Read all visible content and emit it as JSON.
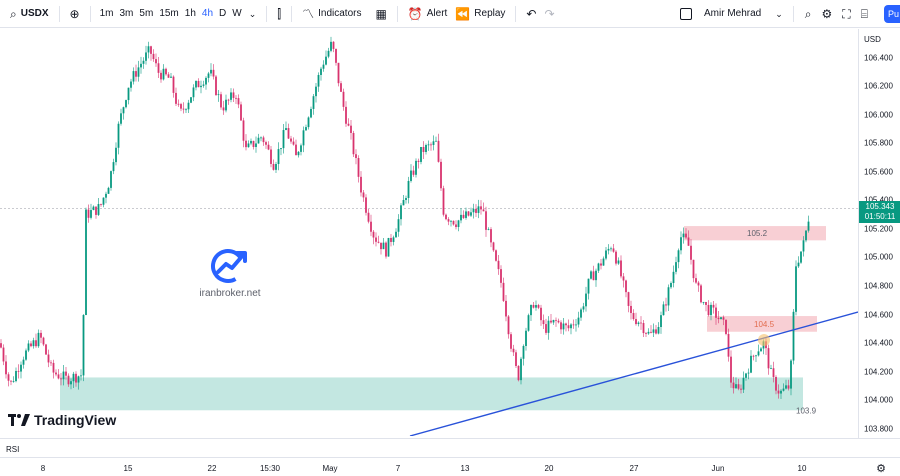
{
  "toolbar": {
    "symbol": "USDX",
    "timeframes": [
      "1m",
      "3m",
      "5m",
      "15m",
      "1h",
      "4h",
      "D",
      "W"
    ],
    "active_timeframe": "4h",
    "indicators_label": "Indicators",
    "alert_label": "Alert",
    "replay_label": "Replay",
    "user_name": "Amir Mehrad",
    "publish_label": "Pu"
  },
  "price_scale": {
    "currency": "USD",
    "ticks": [
      "106.400",
      "106.200",
      "106.000",
      "105.800",
      "105.600",
      "105.400",
      "105.200",
      "105.000",
      "104.800",
      "104.600",
      "104.400",
      "104.200",
      "104.000",
      "103.800"
    ],
    "current_price": "105.343",
    "countdown": "01:50:11"
  },
  "chart": {
    "zone_labels": [
      "105.2",
      "104.5",
      "103.9"
    ],
    "watermark_text": "iranbroker.net",
    "logo_text": "TradingView"
  },
  "chart_data": {
    "type": "candlestick",
    "ylim": [
      103.75,
      106.6
    ],
    "current_price": 105.343,
    "zones": [
      {
        "label": "105.2",
        "low": 105.12,
        "high": 105.22,
        "color": "#f7c7cd"
      },
      {
        "label": "104.5",
        "low": 104.48,
        "high": 104.59,
        "color": "#f7c7cd"
      },
      {
        "label": "103.9",
        "low": 103.93,
        "high": 104.16,
        "color": "#b9e3dc"
      }
    ],
    "trendline": {
      "color": "#2952d9"
    },
    "path": [
      [
        0,
        104.4
      ],
      [
        10,
        104.1
      ],
      [
        22,
        104.3
      ],
      [
        40,
        104.45
      ],
      [
        52,
        104.2
      ],
      [
        66,
        104.15
      ],
      [
        82,
        104.18
      ],
      [
        86,
        105.3
      ],
      [
        100,
        105.35
      ],
      [
        110,
        105.55
      ],
      [
        118,
        105.9
      ],
      [
        128,
        106.2
      ],
      [
        140,
        106.35
      ],
      [
        150,
        106.45
      ],
      [
        158,
        106.3
      ],
      [
        170,
        106.25
      ],
      [
        180,
        106.0
      ],
      [
        196,
        106.2
      ],
      [
        210,
        106.3
      ],
      [
        222,
        106.05
      ],
      [
        236,
        106.15
      ],
      [
        246,
        105.75
      ],
      [
        262,
        105.85
      ],
      [
        274,
        105.65
      ],
      [
        286,
        105.9
      ],
      [
        296,
        105.7
      ],
      [
        310,
        106.05
      ],
      [
        322,
        106.35
      ],
      [
        332,
        106.5
      ],
      [
        342,
        106.1
      ],
      [
        352,
        105.8
      ],
      [
        362,
        105.45
      ],
      [
        374,
        105.15
      ],
      [
        386,
        105.05
      ],
      [
        398,
        105.25
      ],
      [
        410,
        105.55
      ],
      [
        422,
        105.75
      ],
      [
        436,
        105.8
      ],
      [
        444,
        105.3
      ],
      [
        456,
        105.25
      ],
      [
        470,
        105.3
      ],
      [
        482,
        105.35
      ],
      [
        492,
        105.05
      ],
      [
        502,
        104.8
      ],
      [
        512,
        104.35
      ],
      [
        518,
        104.15
      ],
      [
        524,
        104.45
      ],
      [
        534,
        104.7
      ],
      [
        544,
        104.5
      ],
      [
        556,
        104.55
      ],
      [
        568,
        104.5
      ],
      [
        580,
        104.6
      ],
      [
        590,
        104.85
      ],
      [
        600,
        104.95
      ],
      [
        612,
        105.1
      ],
      [
        620,
        104.9
      ],
      [
        630,
        104.6
      ],
      [
        640,
        104.55
      ],
      [
        650,
        104.45
      ],
      [
        660,
        104.55
      ],
      [
        672,
        104.85
      ],
      [
        680,
        105.15
      ],
      [
        688,
        105.1
      ],
      [
        696,
        104.8
      ],
      [
        706,
        104.65
      ],
      [
        716,
        104.6
      ],
      [
        726,
        104.5
      ],
      [
        730,
        104.15
      ],
      [
        738,
        104.05
      ],
      [
        746,
        104.2
      ],
      [
        756,
        104.35
      ],
      [
        764,
        104.4
      ],
      [
        772,
        104.15
      ],
      [
        780,
        104.05
      ],
      [
        790,
        104.1
      ],
      [
        796,
        104.95
      ],
      [
        804,
        105.1
      ],
      [
        810,
        105.34
      ]
    ]
  },
  "time_axis": {
    "labels": [
      "8",
      "15",
      "22",
      "15:30",
      "May",
      "7",
      "13",
      "20",
      "27",
      "Jun",
      "10"
    ]
  },
  "indicator_pane": {
    "label": "RSI"
  },
  "colors": {
    "up": "#089981",
    "down": "#f23645",
    "wick_down": "#d8336e",
    "accent": "#2962ff"
  }
}
